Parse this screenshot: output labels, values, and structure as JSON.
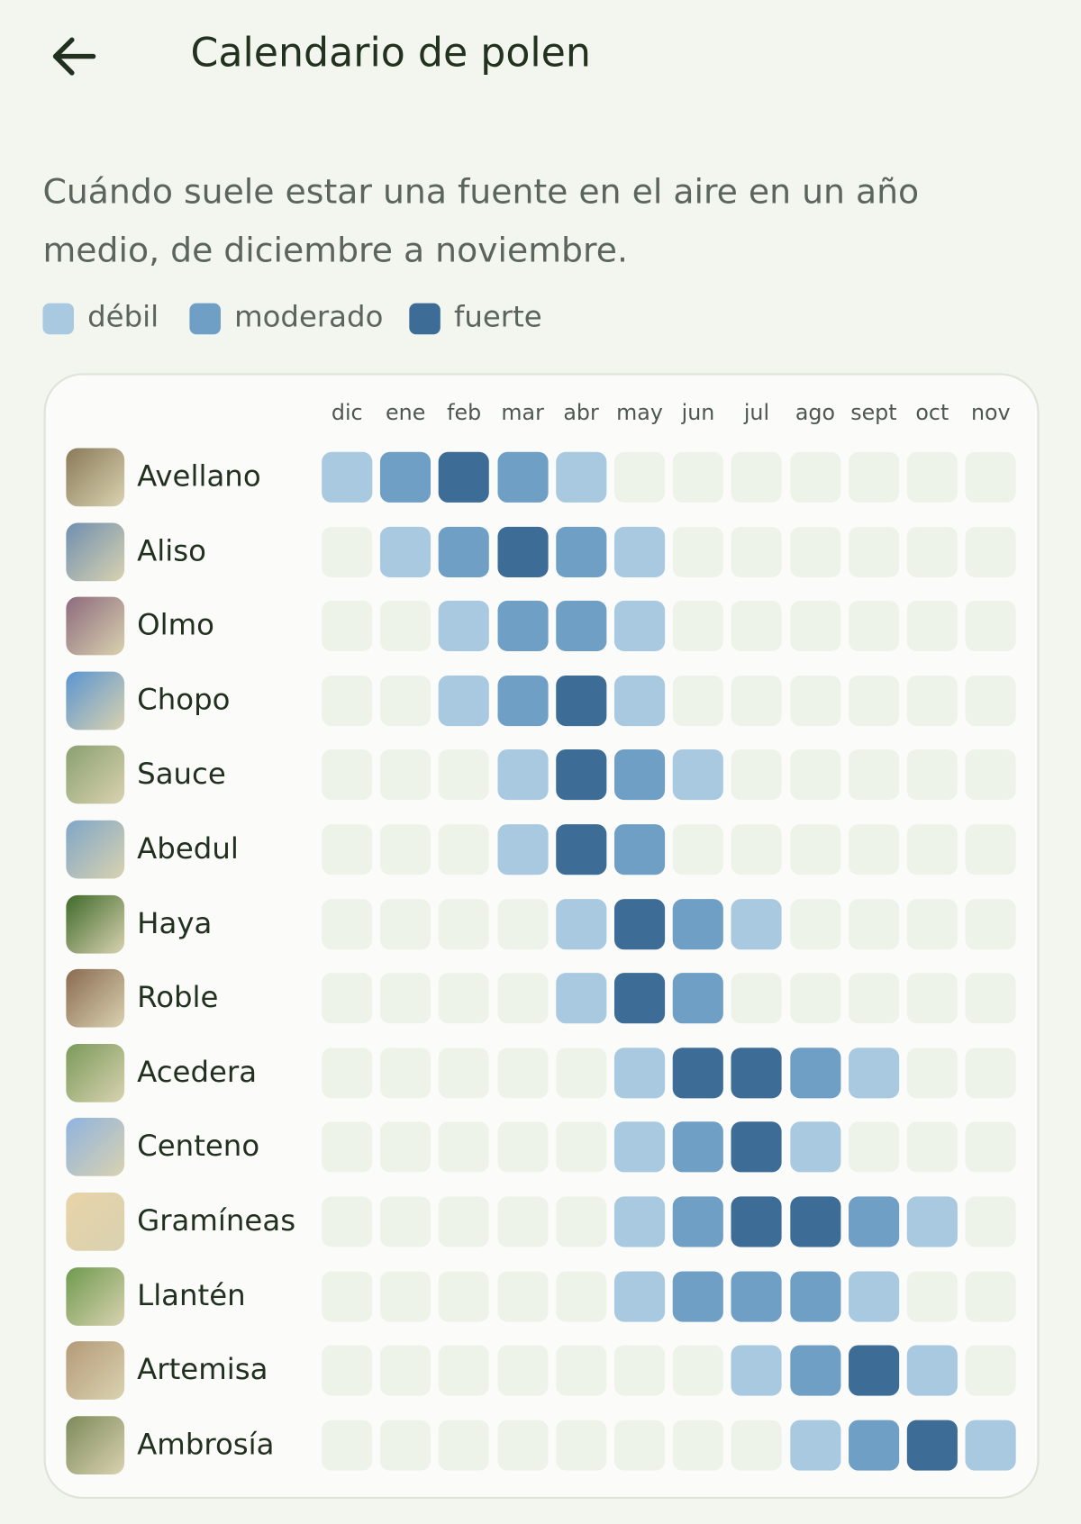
{
  "header": {
    "title": "Calendario de polen"
  },
  "description": "Cuándo suele estar una fuente en el aire en un año medio, de diciembre a noviembre.",
  "legend": [
    {
      "label": "débil",
      "color": "#a9c9e0"
    },
    {
      "label": "moderado",
      "color": "#6f9fc5"
    },
    {
      "label": "fuerte",
      "color": "#3d6d97"
    }
  ],
  "calendar": {
    "months": [
      "dic",
      "ene",
      "feb",
      "mar",
      "abr",
      "may",
      "jun",
      "jul",
      "ago",
      "sept",
      "oct",
      "nov"
    ],
    "rows": [
      {
        "name": "Avellano",
        "levels": [
          1,
          2,
          3,
          2,
          1,
          0,
          0,
          0,
          0,
          0,
          0,
          0
        ]
      },
      {
        "name": "Aliso",
        "levels": [
          0,
          1,
          2,
          3,
          2,
          1,
          0,
          0,
          0,
          0,
          0,
          0
        ]
      },
      {
        "name": "Olmo",
        "levels": [
          0,
          0,
          1,
          2,
          2,
          1,
          0,
          0,
          0,
          0,
          0,
          0
        ]
      },
      {
        "name": "Chopo",
        "levels": [
          0,
          0,
          1,
          2,
          3,
          1,
          0,
          0,
          0,
          0,
          0,
          0
        ]
      },
      {
        "name": "Sauce",
        "levels": [
          0,
          0,
          0,
          1,
          3,
          2,
          1,
          0,
          0,
          0,
          0,
          0
        ]
      },
      {
        "name": "Abedul",
        "levels": [
          0,
          0,
          0,
          1,
          3,
          2,
          0,
          0,
          0,
          0,
          0,
          0
        ]
      },
      {
        "name": "Haya",
        "levels": [
          0,
          0,
          0,
          0,
          1,
          3,
          2,
          1,
          0,
          0,
          0,
          0
        ]
      },
      {
        "name": "Roble",
        "levels": [
          0,
          0,
          0,
          0,
          1,
          3,
          2,
          0,
          0,
          0,
          0,
          0
        ]
      },
      {
        "name": "Acedera",
        "levels": [
          0,
          0,
          0,
          0,
          0,
          1,
          3,
          3,
          2,
          1,
          0,
          0
        ]
      },
      {
        "name": "Centeno",
        "levels": [
          0,
          0,
          0,
          0,
          0,
          1,
          2,
          3,
          1,
          0,
          0,
          0
        ]
      },
      {
        "name": "Gramíneas",
        "levels": [
          0,
          0,
          0,
          0,
          0,
          1,
          2,
          3,
          3,
          2,
          1,
          0
        ]
      },
      {
        "name": "Llantén",
        "levels": [
          0,
          0,
          0,
          0,
          0,
          1,
          2,
          2,
          2,
          1,
          0,
          0
        ]
      },
      {
        "name": "Artemisa",
        "levels": [
          0,
          0,
          0,
          0,
          0,
          0,
          0,
          1,
          2,
          3,
          1,
          0
        ]
      },
      {
        "name": "Ambrosía",
        "levels": [
          0,
          0,
          0,
          0,
          0,
          0,
          0,
          0,
          1,
          2,
          3,
          1
        ]
      }
    ]
  }
}
